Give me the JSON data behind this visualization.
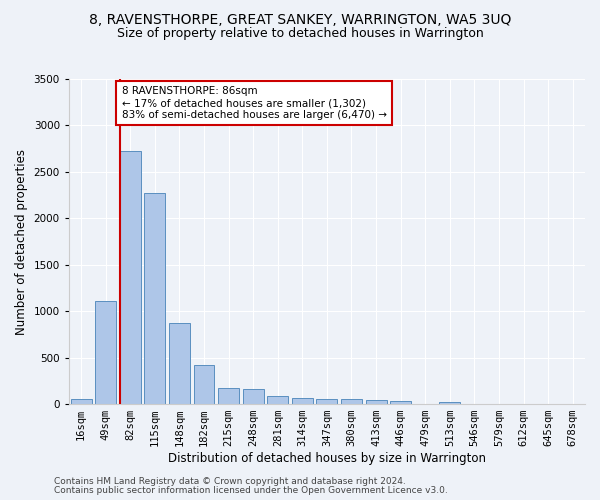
{
  "title": "8, RAVENSTHORPE, GREAT SANKEY, WARRINGTON, WA5 3UQ",
  "subtitle": "Size of property relative to detached houses in Warrington",
  "xlabel": "Distribution of detached houses by size in Warrington",
  "ylabel": "Number of detached properties",
  "categories": [
    "16sqm",
    "49sqm",
    "82sqm",
    "115sqm",
    "148sqm",
    "182sqm",
    "215sqm",
    "248sqm",
    "281sqm",
    "314sqm",
    "347sqm",
    "380sqm",
    "413sqm",
    "446sqm",
    "479sqm",
    "513sqm",
    "546sqm",
    "579sqm",
    "612sqm",
    "645sqm",
    "678sqm"
  ],
  "values": [
    55,
    1115,
    2730,
    2270,
    875,
    425,
    170,
    165,
    90,
    65,
    50,
    50,
    45,
    30,
    0,
    25,
    0,
    0,
    0,
    0,
    0
  ],
  "bar_color": "#aec6e8",
  "bar_edgecolor": "#5a8fc0",
  "vline_color": "#cc0000",
  "annotation_text": "8 RAVENSTHORPE: 86sqm\n← 17% of detached houses are smaller (1,302)\n83% of semi-detached houses are larger (6,470) →",
  "annotation_box_color": "#ffffff",
  "annotation_box_edgecolor": "#cc0000",
  "ylim": [
    0,
    3500
  ],
  "yticks": [
    0,
    500,
    1000,
    1500,
    2000,
    2500,
    3000,
    3500
  ],
  "footer1": "Contains HM Land Registry data © Crown copyright and database right 2024.",
  "footer2": "Contains public sector information licensed under the Open Government Licence v3.0.",
  "background_color": "#eef2f8",
  "plot_background": "#eef2f8",
  "title_fontsize": 10,
  "subtitle_fontsize": 9,
  "xlabel_fontsize": 8.5,
  "ylabel_fontsize": 8.5,
  "tick_fontsize": 7.5,
  "annotation_fontsize": 7.5,
  "footer_fontsize": 6.5
}
